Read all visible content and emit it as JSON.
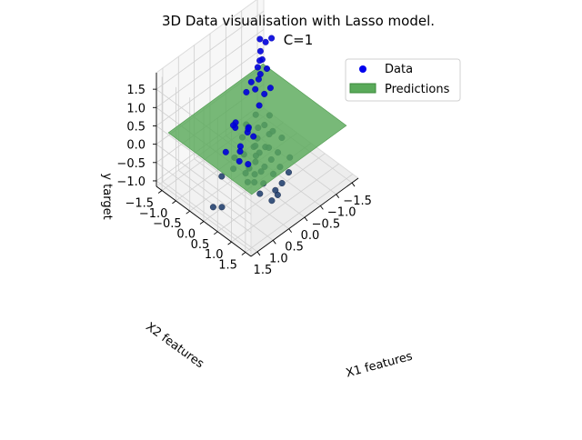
{
  "chart_data": {
    "type": "scatter",
    "title_line1": "3D Data visualisation with Lasso model.",
    "title_line2": "C=1",
    "xlabel": "X1 features",
    "ylabel": "X2 features",
    "zlabel": "y target",
    "x_ticks": [
      "1.5",
      "1.0",
      "0.5",
      "0.0",
      "−0.5",
      "−1.0",
      "−1.5"
    ],
    "y_ticks": [
      "−1.5",
      "−1.0",
      "−0.5",
      "0.0",
      "0.5",
      "1.0",
      "1.5"
    ],
    "z_ticks": [
      "1.5",
      "1.0",
      "0.5",
      "0.0",
      "−0.5",
      "−1.0"
    ],
    "xlim": [
      -1.7,
      1.7
    ],
    "ylim": [
      -1.7,
      1.7
    ],
    "zlim": [
      -1.15,
      1.95
    ],
    "grid": true,
    "legend": {
      "position": "top-right",
      "items": [
        {
          "label": "Data",
          "marker": "circle",
          "color": "#0000ee"
        },
        {
          "label": "Predictions",
          "marker": "rect",
          "color": "#5aaa5a"
        }
      ]
    },
    "prediction_plane": {
      "z_intercept": 0.3,
      "slope_x1": 0.0,
      "slope_x2": 0.0
    },
    "series": [
      {
        "name": "Data",
        "color": "#0000dd",
        "points": [
          [
            -1.2,
            -0.85,
            1.55
          ],
          [
            -1.05,
            -1.1,
            1.48
          ],
          [
            -1.1,
            -0.95,
            1.45
          ],
          [
            -0.98,
            -1.0,
            1.25
          ],
          [
            -0.95,
            -0.9,
            1.1
          ],
          [
            -1.0,
            -1.05,
            0.95
          ],
          [
            -0.92,
            -0.7,
            0.98
          ],
          [
            -0.85,
            -0.95,
            0.92
          ],
          [
            -0.8,
            -0.8,
            0.85
          ],
          [
            -0.7,
            -0.75,
            0.8
          ],
          [
            -0.55,
            -0.7,
            0.65
          ],
          [
            -0.4,
            -0.85,
            0.58
          ],
          [
            -0.6,
            -0.9,
            0.7
          ],
          [
            -0.75,
            -0.6,
            0.45
          ],
          [
            -0.5,
            -0.5,
            0.35
          ],
          [
            -0.3,
            -0.4,
            0.28
          ],
          [
            -0.9,
            -0.55,
            0.55
          ],
          [
            -0.65,
            -0.3,
            0.1
          ],
          [
            0.1,
            -0.2,
            0.3
          ],
          [
            0.6,
            -0.1,
            0.8
          ],
          [
            0.7,
            0.0,
            0.78
          ],
          [
            0.5,
            -0.3,
            0.55
          ],
          [
            0.4,
            0.1,
            0.52
          ],
          [
            0.8,
            0.3,
            0.5
          ],
          [
            0.9,
            0.4,
            0.48
          ],
          [
            1.1,
            0.6,
            0.45
          ],
          [
            1.0,
            0.8,
            0.42
          ],
          [
            0.3,
            0.2,
            0.4
          ],
          [
            0.2,
            -0.1,
            0.38
          ],
          [
            -0.2,
            0.2,
            0.15
          ],
          [
            -0.4,
            0.1,
            0.05
          ],
          [
            0.1,
            0.4,
            0.1
          ],
          [
            0.5,
            0.5,
            0.0
          ],
          [
            0.7,
            0.7,
            -0.1
          ],
          [
            0.3,
            0.6,
            -0.2
          ],
          [
            0.0,
            0.5,
            -0.25
          ],
          [
            -0.3,
            0.4,
            -0.3
          ],
          [
            -0.6,
            0.2,
            -0.2
          ],
          [
            0.6,
            0.9,
            -0.3
          ],
          [
            0.8,
            1.0,
            -0.4
          ],
          [
            0.2,
            0.8,
            -0.35
          ],
          [
            -0.1,
            0.7,
            -0.4
          ],
          [
            -0.5,
            0.6,
            -0.45
          ],
          [
            0.4,
            1.1,
            -0.5
          ],
          [
            0.1,
            1.0,
            -0.55
          ],
          [
            -0.2,
            0.9,
            -0.5
          ],
          [
            0.9,
            0.2,
            0.2
          ],
          [
            1.2,
            0.5,
            0.25
          ],
          [
            1.0,
            0.0,
            0.3
          ],
          [
            0.0,
            0.0,
            0.05
          ],
          [
            -0.1,
            0.3,
            -0.1
          ],
          [
            0.2,
            0.3,
            -0.05
          ],
          [
            0.4,
            0.4,
            0.05
          ],
          [
            0.6,
            0.2,
            0.1
          ],
          [
            0.3,
            -0.2,
            0.15
          ],
          [
            -0.2,
            -0.2,
            0.1
          ],
          [
            0.5,
            0.7,
            -0.15
          ],
          [
            0.7,
            0.5,
            -0.05
          ],
          [
            0.9,
            0.6,
            0.0
          ],
          [
            1.1,
            0.9,
            0.05
          ],
          [
            0.0,
            -0.4,
            0.2
          ],
          [
            -0.4,
            -0.2,
            0.05
          ],
          [
            0.2,
            0.1,
            0.0
          ],
          [
            0.8,
            0.8,
            -0.2
          ],
          [
            0.6,
            1.2,
            -0.6
          ],
          [
            1.3,
            0.2,
            -0.9
          ],
          [
            1.4,
            0.0,
            -0.95
          ],
          [
            0.6,
            -0.6,
            -0.95
          ],
          [
            -0.2,
            -0.3,
            -0.45
          ],
          [
            0.5,
            1.3,
            -0.45
          ]
        ]
      }
    ]
  }
}
